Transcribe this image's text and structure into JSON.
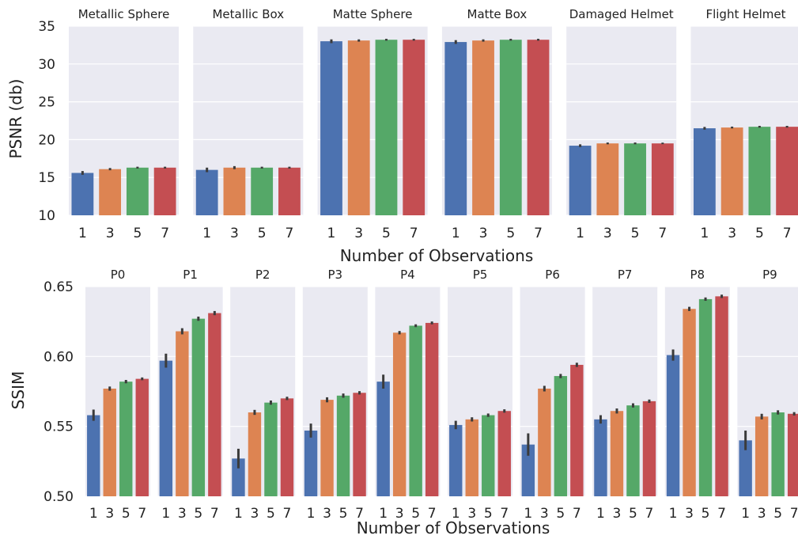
{
  "x_axis_label": "Number of  Observations",
  "categories": [
    "1",
    "3",
    "5",
    "7"
  ],
  "colors": [
    "#4c72b0",
    "#dd8452",
    "#55a868",
    "#c44e52"
  ],
  "chart_data": [
    {
      "type": "bar",
      "ylabel": "PSNR (db)",
      "xlabel": "Number of  Observations",
      "ylim": [
        10,
        35
      ],
      "yticks": [
        10,
        15,
        20,
        25,
        30,
        35
      ],
      "grid": true,
      "categories": [
        "1",
        "3",
        "5",
        "7"
      ],
      "panels": [
        {
          "title": "Metallic Sphere",
          "values": [
            15.6,
            16.1,
            16.3,
            16.3
          ],
          "err": [
            0.25,
            0.15,
            0.12,
            0.12
          ]
        },
        {
          "title": "Metallic Box",
          "values": [
            16.0,
            16.3,
            16.3,
            16.3
          ],
          "err": [
            0.3,
            0.2,
            0.12,
            0.12
          ]
        },
        {
          "title": "Matte Sphere",
          "values": [
            33.0,
            33.1,
            33.2,
            33.2
          ],
          "err": [
            0.25,
            0.15,
            0.12,
            0.12
          ]
        },
        {
          "title": "Matte Box",
          "values": [
            32.9,
            33.1,
            33.2,
            33.2
          ],
          "err": [
            0.25,
            0.15,
            0.12,
            0.12
          ]
        },
        {
          "title": "Damaged Helmet",
          "values": [
            19.2,
            19.5,
            19.5,
            19.5
          ],
          "err": [
            0.18,
            0.12,
            0.12,
            0.1
          ]
        },
        {
          "title": "Flight Helmet",
          "values": [
            21.5,
            21.6,
            21.7,
            21.7
          ],
          "err": [
            0.18,
            0.12,
            0.12,
            0.12
          ]
        }
      ]
    },
    {
      "type": "bar",
      "ylabel": "SSIM",
      "xlabel": "Number of  Observations",
      "ylim": [
        0.5,
        0.65
      ],
      "yticks": [
        0.5,
        0.55,
        0.6,
        0.65
      ],
      "tick_format": 2,
      "grid": true,
      "categories": [
        "1",
        "3",
        "5",
        "7"
      ],
      "panels": [
        {
          "title": "P0",
          "values": [
            0.558,
            0.577,
            0.582,
            0.584
          ],
          "err": [
            0.004,
            0.0015,
            0.0012,
            0.001
          ]
        },
        {
          "title": "P1",
          "values": [
            0.597,
            0.618,
            0.627,
            0.631
          ],
          "err": [
            0.005,
            0.0022,
            0.0015,
            0.0015
          ]
        },
        {
          "title": "P2",
          "values": [
            0.527,
            0.56,
            0.567,
            0.57
          ],
          "err": [
            0.007,
            0.0018,
            0.0015,
            0.0012
          ]
        },
        {
          "title": "P3",
          "values": [
            0.547,
            0.569,
            0.572,
            0.574
          ],
          "err": [
            0.005,
            0.0018,
            0.0015,
            0.0012
          ]
        },
        {
          "title": "P4",
          "values": [
            0.582,
            0.617,
            0.622,
            0.624
          ],
          "err": [
            0.005,
            0.0012,
            0.001,
            0.001
          ]
        },
        {
          "title": "P5",
          "values": [
            0.551,
            0.555,
            0.558,
            0.561
          ],
          "err": [
            0.003,
            0.0015,
            0.0012,
            0.0012
          ]
        },
        {
          "title": "P6",
          "values": [
            0.537,
            0.577,
            0.586,
            0.594
          ],
          "err": [
            0.008,
            0.002,
            0.0015,
            0.0015
          ]
        },
        {
          "title": "P7",
          "values": [
            0.555,
            0.561,
            0.565,
            0.568
          ],
          "err": [
            0.003,
            0.0018,
            0.0015,
            0.0012
          ]
        },
        {
          "title": "P8",
          "values": [
            0.601,
            0.634,
            0.641,
            0.643
          ],
          "err": [
            0.004,
            0.0015,
            0.0012,
            0.0012
          ]
        },
        {
          "title": "P9",
          "values": [
            0.54,
            0.557,
            0.56,
            0.559
          ],
          "err": [
            0.007,
            0.002,
            0.0015,
            0.0012
          ]
        }
      ]
    }
  ]
}
